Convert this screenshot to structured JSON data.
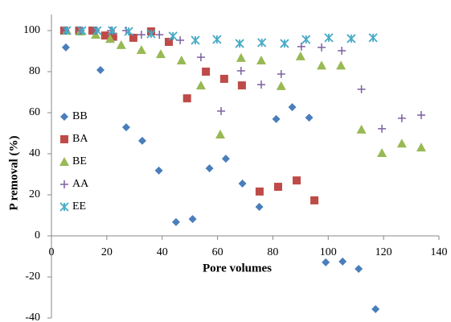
{
  "chart_data": {
    "type": "scatter",
    "x_label": "Pore volumes",
    "y_label": "P removal (%)",
    "xlim": [
      0,
      140
    ],
    "xticks": [
      0,
      20,
      40,
      60,
      80,
      100,
      120,
      140
    ],
    "ylim": [
      -40,
      100
    ],
    "yticks": [
      -40,
      -20,
      0,
      20,
      40,
      60,
      80,
      100
    ],
    "grid": false,
    "legend": "left",
    "series": [
      {
        "name": "BB",
        "color": "#4a7ebb",
        "marker": "diamond",
        "x": [
          5.2,
          17.7,
          27,
          32.8,
          38.8,
          45,
          51,
          57.1,
          63,
          69,
          75.1,
          81.2,
          87,
          93.1,
          99.1,
          105.2,
          111,
          117.1
        ],
        "values": [
          91.8,
          80.8,
          52.9,
          46.3,
          31.8,
          6.7,
          8.2,
          32.9,
          37.6,
          25.5,
          14.1,
          56.9,
          62.7,
          57.6,
          -12.9,
          -12.5,
          -16.1,
          -35.7
        ]
      },
      {
        "name": "BA",
        "color": "#be4b48",
        "marker": "square",
        "x": [
          4.6,
          10,
          14.8,
          19.4,
          22.3,
          29.6,
          36,
          42.4,
          49,
          55.8,
          62.4,
          68.8,
          75.2,
          81.9,
          88.6,
          95
        ],
        "values": [
          100,
          100,
          100,
          97.6,
          97,
          96.5,
          99.6,
          94.5,
          67,
          80,
          76.5,
          73.3,
          21.6,
          23.9,
          27,
          17.3
        ]
      },
      {
        "name": "BE",
        "color": "#98b954",
        "marker": "triangle",
        "x": [
          5.5,
          10.4,
          16,
          21.2,
          25.2,
          32.5,
          39.5,
          47,
          54,
          61,
          68.5,
          75.8,
          83,
          90,
          97.6,
          104.6,
          112,
          119.4,
          126.6,
          133.6
        ],
        "values": [
          100,
          99.6,
          98,
          96,
          93,
          90.6,
          88.6,
          85.5,
          73.3,
          49.4,
          86.7,
          85.5,
          73,
          87.5,
          83,
          83,
          51.8,
          40.4,
          45,
          43.1
        ]
      },
      {
        "name": "AA",
        "color": "#7d60a0",
        "marker": "plus",
        "x": [
          5,
          10.5,
          16,
          21.5,
          27,
          32.5,
          39,
          46.5,
          54,
          61.3,
          68.5,
          75.8,
          83,
          90.3,
          97.6,
          104.9,
          112,
          119.4,
          126.6,
          133.6
        ],
        "values": [
          100,
          100,
          100,
          100,
          100,
          98,
          98,
          95.3,
          87,
          60.8,
          80.4,
          73.7,
          78.8,
          92.2,
          91.8,
          90.2,
          71.4,
          52.2,
          57.3,
          58.8
        ]
      },
      {
        "name": "EE",
        "color": "#46aac5",
        "marker": "star",
        "x": [
          5.5,
          11,
          16.5,
          22,
          27.9,
          36,
          43.9,
          52,
          59.8,
          68,
          76,
          84.2,
          92,
          100.2,
          108.3,
          116.2
        ],
        "values": [
          100,
          100,
          100,
          100,
          99.6,
          98.4,
          97.3,
          95.3,
          95.7,
          93.7,
          94.1,
          93.7,
          95.7,
          96.5,
          96.1,
          96.5
        ]
      }
    ]
  }
}
